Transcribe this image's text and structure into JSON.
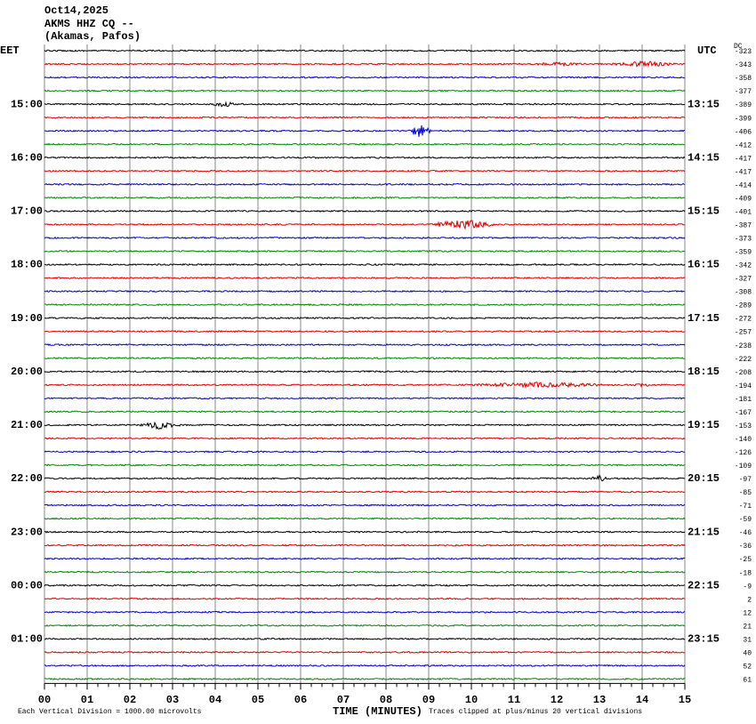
{
  "header": {
    "date": "Oct14,2025",
    "station": "AKMS HHZ CQ --",
    "location": "(Akamas, Pafos)"
  },
  "left_zone": "EET",
  "right_zone": "UTC",
  "dc_header": "DC",
  "eet_hours": [
    "15:00",
    "16:00",
    "17:00",
    "18:00",
    "19:00",
    "20:00",
    "21:00",
    "22:00",
    "23:00",
    "00:00",
    "01:00"
  ],
  "utc_hours": [
    "13:15",
    "14:15",
    "15:15",
    "16:15",
    "17:15",
    "18:15",
    "19:15",
    "20:15",
    "21:15",
    "22:15",
    "23:15"
  ],
  "dc_values": [
    "-323",
    "-343",
    "-358",
    "-377",
    "-389",
    "-399",
    "-406",
    "-412",
    "-417",
    "-417",
    "-414",
    "-409",
    "-401",
    "-387",
    "-373",
    "-359",
    "-342",
    "-327",
    "-308",
    "-289",
    "-272",
    "-257",
    "-238",
    "-222",
    "-208",
    "-194",
    "-181",
    "-167",
    "-153",
    "-140",
    "-126",
    "-109",
    "-97",
    "-85",
    "-71",
    "-59",
    "-46",
    "-36",
    "-25",
    "-18",
    "-9",
    "2",
    "12",
    "21",
    "31",
    "40",
    "52",
    "61"
  ],
  "minute_ticks": [
    "00",
    "01",
    "02",
    "03",
    "04",
    "05",
    "06",
    "07",
    "08",
    "09",
    "10",
    "11",
    "12",
    "13",
    "14",
    "15"
  ],
  "footer": {
    "x_title": "TIME (MINUTES)",
    "scale_note": "Each Vertical Division = 1000.00 microvolts",
    "clip_note": "Traces clipped at plus/minus 20 vertical divisions"
  }
}
